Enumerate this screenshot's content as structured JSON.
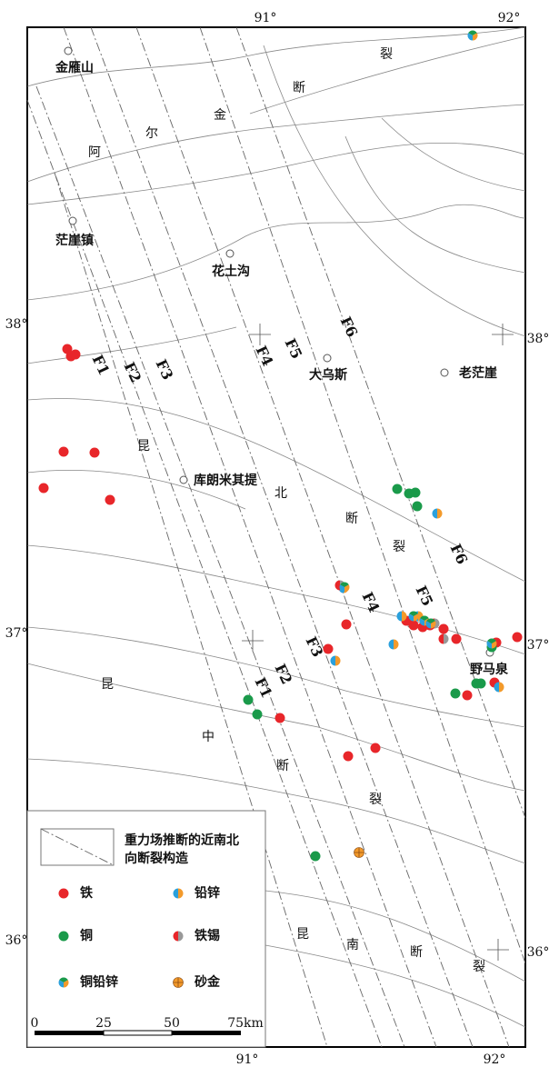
{
  "grid_labels": {
    "top": [
      "91°",
      "92°"
    ],
    "bottom": [
      "91°",
      "92°"
    ],
    "left": [
      "38°",
      "37°",
      "36°"
    ],
    "right": [
      "38°",
      "37°",
      "36°"
    ]
  },
  "places": [
    "金雁山",
    "茫崖镇",
    "花土沟",
    "大乌斯",
    "老茫崖",
    "库朗米其提",
    "野马泉"
  ],
  "fault_names": {
    "altyn": [
      "阿",
      "尔",
      "金",
      "断",
      "裂"
    ],
    "kunbei": [
      "昆",
      "北",
      "断",
      "裂"
    ],
    "kunzhong": [
      "昆",
      "中",
      "断",
      "裂"
    ],
    "kunnan": [
      "昆",
      "南",
      "断",
      "裂"
    ]
  },
  "gravity_faults": [
    "F1",
    "F2",
    "F3",
    "F4",
    "F5",
    "F6"
  ],
  "legend": {
    "fault_line": [
      "重力场推断的近南北",
      "向断裂构造"
    ],
    "items": [
      {
        "label": "铁",
        "color": "#e8262a"
      },
      {
        "label": "铅锌",
        "color": "#2aa0dc"
      },
      {
        "label": "铜",
        "color": "#1a9a4a"
      },
      {
        "label": "铁锡",
        "color": "#999999"
      },
      {
        "label": "铜铅锌",
        "color": "#f39a2b"
      },
      {
        "label": "砂金",
        "color": "#f39a2b"
      }
    ]
  },
  "scale_bar": [
    "0",
    "25",
    "50",
    "75km"
  ]
}
